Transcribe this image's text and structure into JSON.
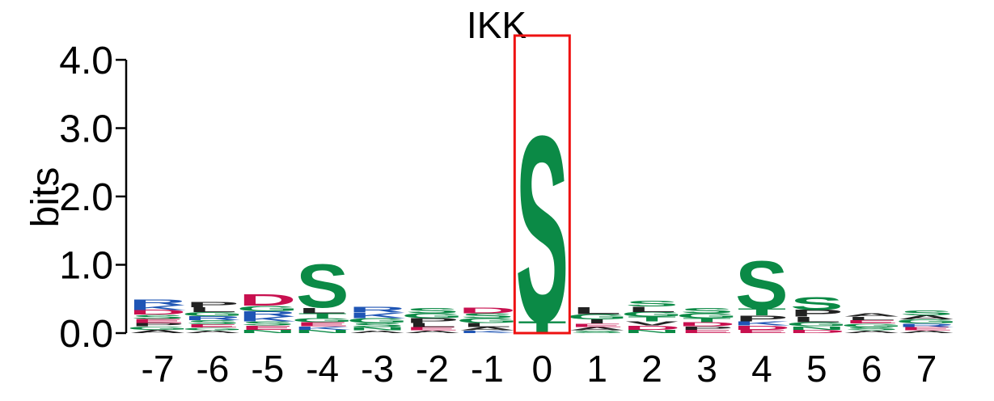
{
  "chart_data": {
    "type": "sequence-logo",
    "title": "IKK",
    "ylabel": "bits",
    "ylim": [
      0,
      4.0
    ],
    "yticks": [
      "0.0",
      "1.0",
      "2.0",
      "3.0",
      "4.0"
    ],
    "yticks_values": [
      0,
      1,
      2,
      3,
      4
    ],
    "positions": [
      "-7",
      "-6",
      "-5",
      "-4",
      "-3",
      "-2",
      "-1",
      "0",
      "1",
      "2",
      "3",
      "4",
      "5",
      "6",
      "7"
    ],
    "highlight_position": "0",
    "highlight_color": "#ee1111",
    "residue_colors": {
      "S": "#0b8a46",
      "T": "#0b8a46",
      "G": "#0b8a46",
      "Q": "#0b8a46",
      "N": "#0b8a46",
      "C": "#0b8a46",
      "Y": "#0b8a46",
      "D": "#c8104f",
      "E": "#c8104f",
      "R": "#1f55b5",
      "K": "#1f55b5",
      "H": "#1f55b5",
      "P": "#222222",
      "L": "#222222",
      "A": "#222222",
      "V": "#222222",
      "I": "#222222",
      "F": "#222222",
      "M": "#222222",
      "W": "#222222"
    },
    "columns": [
      {
        "position": "-7",
        "letters": [
          {
            "aa": "A",
            "bits": 0.05
          },
          {
            "aa": "G",
            "bits": 0.05
          },
          {
            "aa": "P",
            "bits": 0.05
          },
          {
            "aa": "E",
            "bits": 0.06
          },
          {
            "aa": "S",
            "bits": 0.06
          },
          {
            "aa": "D",
            "bits": 0.07
          },
          {
            "aa": "K",
            "bits": 0.07
          },
          {
            "aa": "R",
            "bits": 0.09
          }
        ]
      },
      {
        "position": "-6",
        "letters": [
          {
            "aa": "A",
            "bits": 0.04
          },
          {
            "aa": "G",
            "bits": 0.04
          },
          {
            "aa": "E",
            "bits": 0.05
          },
          {
            "aa": "S",
            "bits": 0.06
          },
          {
            "aa": "R",
            "bits": 0.06
          },
          {
            "aa": "G",
            "bits": 0.06
          },
          {
            "aa": "L",
            "bits": 0.07
          },
          {
            "aa": "P",
            "bits": 0.08
          }
        ]
      },
      {
        "position": "-5",
        "letters": [
          {
            "aa": "N",
            "bits": 0.05
          },
          {
            "aa": "E",
            "bits": 0.06
          },
          {
            "aa": "S",
            "bits": 0.06
          },
          {
            "aa": "K",
            "bits": 0.07
          },
          {
            "aa": "R",
            "bits": 0.08
          },
          {
            "aa": "G",
            "bits": 0.08
          },
          {
            "aa": "D",
            "bits": 0.17
          }
        ]
      },
      {
        "position": "-4",
        "letters": [
          {
            "aa": "N",
            "bits": 0.05
          },
          {
            "aa": "K",
            "bits": 0.05
          },
          {
            "aa": "E",
            "bits": 0.06
          },
          {
            "aa": "G",
            "bits": 0.06
          },
          {
            "aa": "T",
            "bits": 0.07
          },
          {
            "aa": "L",
            "bits": 0.08
          },
          {
            "aa": "S",
            "bits": 0.66
          }
        ]
      },
      {
        "position": "-3",
        "letters": [
          {
            "aa": "A",
            "bits": 0.04
          },
          {
            "aa": "N",
            "bits": 0.05
          },
          {
            "aa": "S",
            "bits": 0.06
          },
          {
            "aa": "G",
            "bits": 0.07
          },
          {
            "aa": "K",
            "bits": 0.08
          },
          {
            "aa": "R",
            "bits": 0.09
          }
        ]
      },
      {
        "position": "-2",
        "letters": [
          {
            "aa": "A",
            "bits": 0.04
          },
          {
            "aa": "E",
            "bits": 0.05
          },
          {
            "aa": "L",
            "bits": 0.06
          },
          {
            "aa": "P",
            "bits": 0.07
          },
          {
            "aa": "G",
            "bits": 0.07
          },
          {
            "aa": "S",
            "bits": 0.08
          }
        ]
      },
      {
        "position": "-1",
        "letters": [
          {
            "aa": "K",
            "bits": 0.04
          },
          {
            "aa": "A",
            "bits": 0.05
          },
          {
            "aa": "L",
            "bits": 0.06
          },
          {
            "aa": "G",
            "bits": 0.07
          },
          {
            "aa": "S",
            "bits": 0.07
          },
          {
            "aa": "D",
            "bits": 0.09
          }
        ]
      },
      {
        "position": "0",
        "letters": [
          {
            "aa": "T",
            "bits": 0.18
          },
          {
            "aa": "S",
            "bits": 2.8
          }
        ]
      },
      {
        "position": "1",
        "letters": [
          {
            "aa": "S",
            "bits": 0.04
          },
          {
            "aa": "A",
            "bits": 0.05
          },
          {
            "aa": "E",
            "bits": 0.05
          },
          {
            "aa": "I",
            "bits": 0.06
          },
          {
            "aa": "G",
            "bits": 0.08
          },
          {
            "aa": "L",
            "bits": 0.1
          }
        ]
      },
      {
        "position": "2",
        "letters": [
          {
            "aa": "N",
            "bits": 0.05
          },
          {
            "aa": "D",
            "bits": 0.06
          },
          {
            "aa": "V",
            "bits": 0.06
          },
          {
            "aa": "T",
            "bits": 0.07
          },
          {
            "aa": "G",
            "bits": 0.07
          },
          {
            "aa": "L",
            "bits": 0.08
          },
          {
            "aa": "S",
            "bits": 0.09
          }
        ]
      },
      {
        "position": "3",
        "letters": [
          {
            "aa": "E",
            "bits": 0.05
          },
          {
            "aa": "P",
            "bits": 0.05
          },
          {
            "aa": "D",
            "bits": 0.06
          },
          {
            "aa": "T",
            "bits": 0.06
          },
          {
            "aa": "G",
            "bits": 0.07
          },
          {
            "aa": "S",
            "bits": 0.08
          }
        ]
      },
      {
        "position": "4",
        "letters": [
          {
            "aa": "E",
            "bits": 0.05
          },
          {
            "aa": "D",
            "bits": 0.06
          },
          {
            "aa": "K",
            "bits": 0.06
          },
          {
            "aa": "P",
            "bits": 0.09
          },
          {
            "aa": "T",
            "bits": 0.1
          },
          {
            "aa": "S",
            "bits": 0.72
          }
        ]
      },
      {
        "position": "5",
        "letters": [
          {
            "aa": "D",
            "bits": 0.05
          },
          {
            "aa": "N",
            "bits": 0.05
          },
          {
            "aa": "G",
            "bits": 0.06
          },
          {
            "aa": "L",
            "bits": 0.08
          },
          {
            "aa": "P",
            "bits": 0.1
          },
          {
            "aa": "S",
            "bits": 0.2
          }
        ]
      },
      {
        "position": "6",
        "letters": [
          {
            "aa": "A",
            "bits": 0.04
          },
          {
            "aa": "S",
            "bits": 0.05
          },
          {
            "aa": "G",
            "bits": 0.05
          },
          {
            "aa": "E",
            "bits": 0.05
          },
          {
            "aa": "L",
            "bits": 0.05
          },
          {
            "aa": "A",
            "bits": 0.05
          }
        ]
      },
      {
        "position": "7",
        "letters": [
          {
            "aa": "A",
            "bits": 0.04
          },
          {
            "aa": "E",
            "bits": 0.05
          },
          {
            "aa": "R",
            "bits": 0.05
          },
          {
            "aa": "G",
            "bits": 0.06
          },
          {
            "aa": "A",
            "bits": 0.06
          },
          {
            "aa": "S",
            "bits": 0.07
          }
        ]
      }
    ]
  }
}
